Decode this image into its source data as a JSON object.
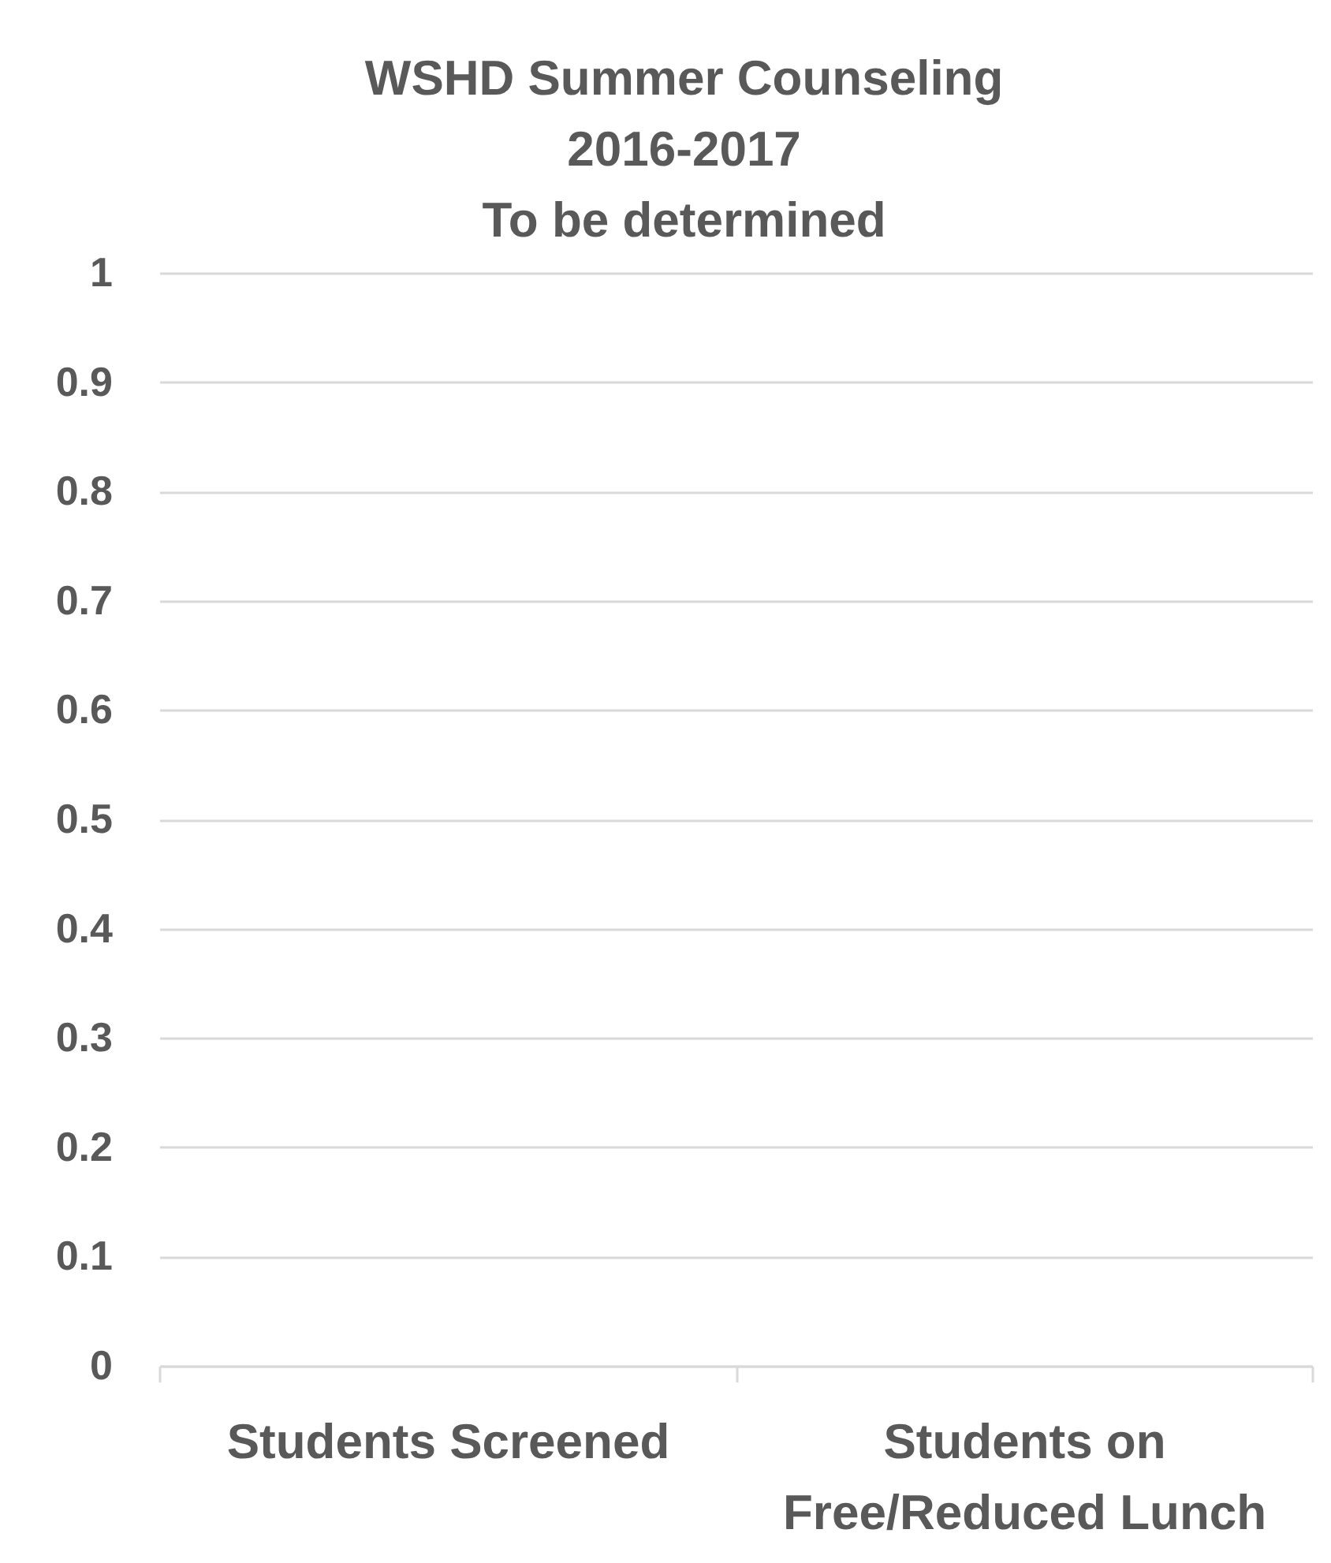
{
  "chart_data": {
    "type": "bar",
    "title": "WSHD Summer Counseling\n2016-2017\nTo be determined",
    "categories": [
      "Students Screened",
      "Students on Free/Reduced Lunch"
    ],
    "values": [
      null,
      null
    ],
    "ylim": [
      0,
      1
    ],
    "yticks": [
      0,
      0.1,
      0.2,
      0.3,
      0.4,
      0.5,
      0.6,
      0.7,
      0.8,
      0.9,
      1
    ],
    "grid": "y"
  }
}
